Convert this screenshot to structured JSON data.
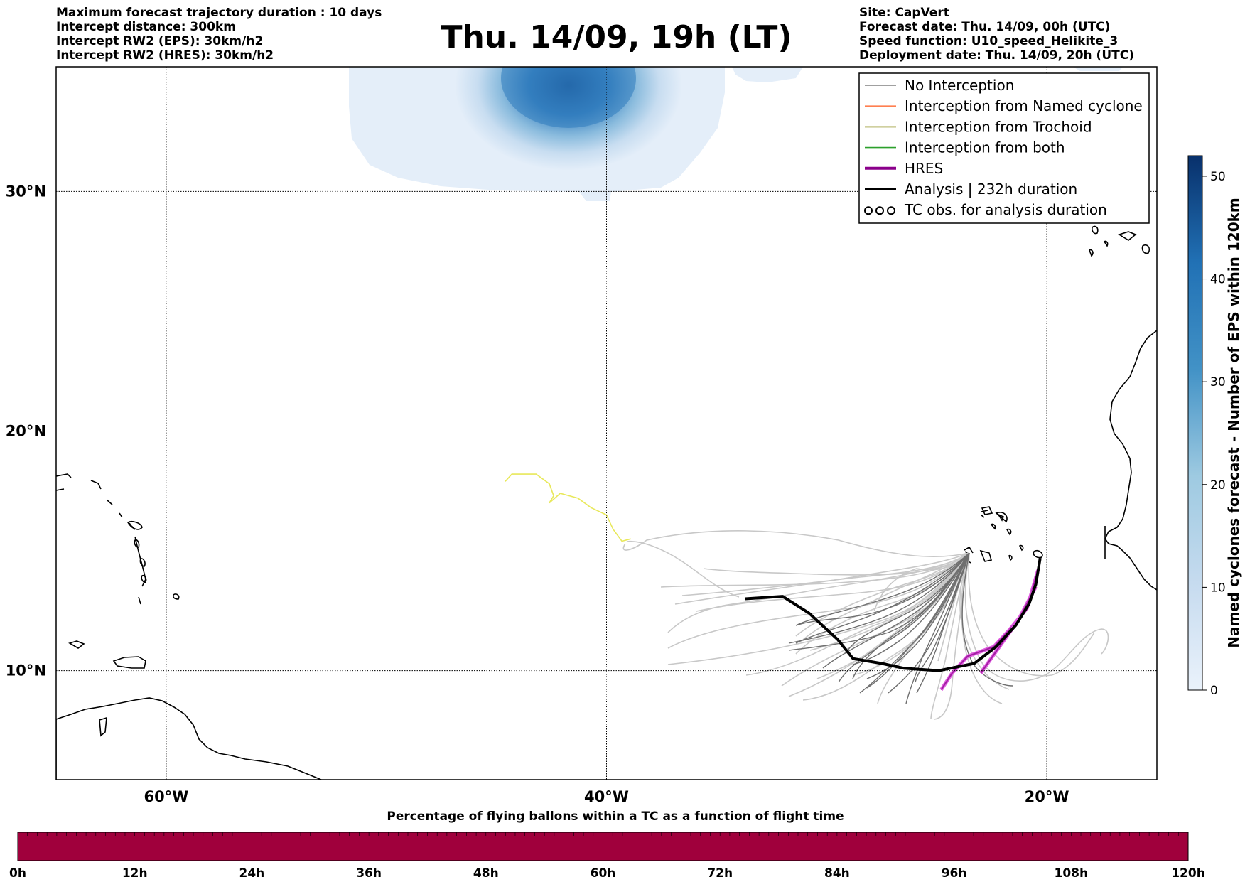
{
  "header": {
    "left_lines": [
      "Maximum forecast trajectory duration : 10 days",
      "Intercept distance: 300km",
      "Intercept RW2 (EPS):  30km/h2",
      "Intercept RW2 (HRES): 30km/h2"
    ],
    "title": "Thu. 14/09, 19h (LT)",
    "right_lines": [
      "Site: CapVert",
      "Forecast date: Thu. 14/09, 00h (UTC)",
      "Speed function: U10_speed_Helikite_3",
      "Deployment date: Thu. 14/09, 20h (UTC)"
    ]
  },
  "map": {
    "lat_labels": [
      "30°N",
      "20°N",
      "10°N"
    ],
    "lon_labels": [
      "60°W",
      "40°W",
      "20°W"
    ],
    "lat_values": [
      30,
      20,
      10
    ],
    "lon_values": [
      -60,
      -40,
      -20
    ],
    "extent": {
      "lon_min": -65,
      "lon_max": -15,
      "lat_min": 5.45,
      "lat_max": 35.2
    },
    "analysis_track": [
      [
        -33.7,
        13.0
      ],
      [
        -32.0,
        13.1
      ],
      [
        -30.8,
        12.4
      ],
      [
        -29.5,
        11.3
      ],
      [
        -28.8,
        10.5
      ],
      [
        -27.5,
        10.3
      ],
      [
        -26.5,
        10.1
      ],
      [
        -24.9,
        10.0
      ],
      [
        -23.3,
        10.3
      ],
      [
        -22.3,
        11.0
      ],
      [
        -21.4,
        11.9
      ],
      [
        -20.8,
        12.8
      ],
      [
        -20.5,
        13.6
      ],
      [
        -20.3,
        14.7
      ]
    ],
    "hres_tracks": [
      [
        [
          -20.4,
          14.2
        ],
        [
          -20.9,
          12.6
        ],
        [
          -21.7,
          11.7
        ],
        [
          -22.4,
          11.0
        ],
        [
          -23.6,
          10.6
        ],
        [
          -24.3,
          9.9
        ],
        [
          -24.8,
          9.2
        ]
      ],
      [
        [
          -20.5,
          13.5
        ],
        [
          -21.3,
          12.1
        ],
        [
          -22.3,
          10.8
        ],
        [
          -23.0,
          9.9
        ]
      ]
    ],
    "eps_cyclone_track": [
      [
        -44.6,
        17.9
      ],
      [
        -44.3,
        18.2
      ],
      [
        -43.2,
        18.2
      ],
      [
        -42.6,
        17.8
      ],
      [
        -42.4,
        17.3
      ],
      [
        -42.6,
        17.0
      ],
      [
        -42.1,
        17.4
      ],
      [
        -41.3,
        17.2
      ],
      [
        -40.7,
        16.8
      ],
      [
        -40.0,
        16.5
      ],
      [
        -39.7,
        15.9
      ],
      [
        -39.3,
        15.4
      ],
      [
        -38.9,
        15.5
      ]
    ]
  },
  "legend": {
    "items": [
      {
        "label": "No Interception",
        "color": "#808080",
        "style": "thin"
      },
      {
        "label": "Interception from Named cyclone",
        "color": "#ff7f50",
        "style": "thin"
      },
      {
        "label": "Interception from Trochoid",
        "color": "#808000",
        "style": "thin"
      },
      {
        "label": "Interception from both",
        "color": "#2ca02c",
        "style": "thin"
      },
      {
        "label": "HRES",
        "color": "#8b008b",
        "style": "thick"
      },
      {
        "label": "Analysis | 232h duration",
        "color": "#000000",
        "style": "thick"
      },
      {
        "label": "TC obs. for analysis duration",
        "color": "#000000",
        "style": "symbol"
      }
    ]
  },
  "colorbar": {
    "title": "Named cyclones forecast - Number of EPS within 120km",
    "ticks": [
      "0",
      "10",
      "20",
      "30",
      "40",
      "50"
    ],
    "tick_values": [
      0,
      10,
      20,
      30,
      40,
      50
    ],
    "range": [
      0,
      52
    ],
    "color_low": "#e3eef9",
    "color_high": "#08306b"
  },
  "time_bar": {
    "title": "Percentage of flying ballons within a TC as a function of flight time",
    "ticks": [
      "0h",
      "12h",
      "24h",
      "36h",
      "48h",
      "60h",
      "72h",
      "84h",
      "96h",
      "108h",
      "120h"
    ],
    "fill_color": "#a0003c",
    "percent_by_hour": 0
  }
}
